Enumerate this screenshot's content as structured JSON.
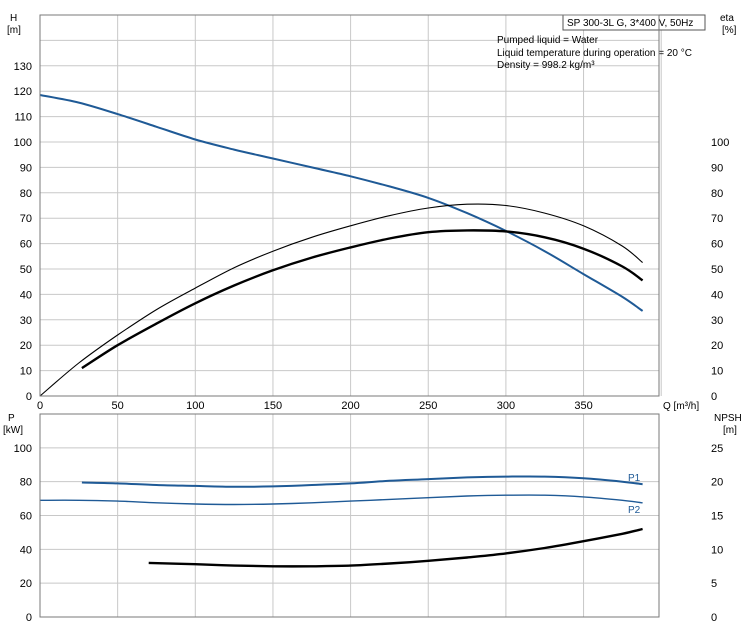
{
  "chart_data": [
    {
      "type": "line",
      "title": "SP 300-3L G, 3*400 V, 50Hz",
      "info_lines": [
        "Pumped liquid = Water",
        "Liquid temperature during operation = 20 °C",
        "Density = 998.2 kg/m³"
      ],
      "xlabel": "Q [m³/h]",
      "ylabel_left": [
        "H",
        "[m]"
      ],
      "ylabel_right": [
        "eta",
        "[%]"
      ],
      "xlim": [
        0,
        400
      ],
      "ylim_left": [
        0,
        150
      ],
      "ylim_right": [
        0,
        150
      ],
      "x_ticks": [
        0,
        50,
        100,
        150,
        200,
        250,
        300,
        350
      ],
      "y_ticks_left": [
        0,
        10,
        20,
        30,
        40,
        50,
        60,
        70,
        80,
        90,
        100,
        110,
        120,
        130
      ],
      "y_ticks_right": [
        0,
        10,
        20,
        30,
        40,
        50,
        60,
        70,
        80,
        90,
        100
      ],
      "grid": true,
      "series": [
        {
          "key": "head",
          "axis": "left",
          "color": "#1f5a96",
          "x": [
            0,
            25,
            50,
            75,
            100,
            125,
            150,
            175,
            200,
            225,
            250,
            275,
            300,
            325,
            350,
            375,
            388
          ],
          "y": [
            118.5,
            115.5,
            111,
            106,
            101,
            97,
            93.5,
            90,
            86.5,
            82.5,
            78,
            72,
            65,
            57,
            48,
            39,
            33.5
          ]
        },
        {
          "key": "eta_thin",
          "axis": "right",
          "color": "#000000",
          "x": [
            0,
            25,
            50,
            75,
            100,
            125,
            150,
            175,
            200,
            225,
            250,
            275,
            300,
            325,
            350,
            375,
            388
          ],
          "y": [
            0,
            13,
            24,
            34,
            42.5,
            50.5,
            57,
            62.5,
            67,
            71,
            74,
            75.5,
            75,
            72,
            67,
            59,
            52.5
          ]
        },
        {
          "key": "eta_thick",
          "axis": "right",
          "color": "#000000",
          "x": [
            27,
            50,
            75,
            100,
            125,
            150,
            175,
            200,
            225,
            250,
            275,
            300,
            325,
            350,
            375,
            388
          ],
          "y": [
            11,
            20,
            28.5,
            36.5,
            43.5,
            49.5,
            54.5,
            58.5,
            62,
            64.5,
            65.2,
            64.8,
            62.5,
            58,
            51,
            45.5
          ]
        }
      ]
    },
    {
      "type": "line",
      "xlim": [
        0,
        400
      ],
      "ylim_left": [
        0,
        120
      ],
      "ylim_right": [
        0,
        30
      ],
      "ylabel_left": [
        "P",
        "[kW]"
      ],
      "ylabel_right": [
        "NPSH",
        "[m]"
      ],
      "y_ticks_left": [
        0,
        20,
        40,
        60,
        80,
        100
      ],
      "y_ticks_right": [
        0,
        5,
        10,
        15,
        20,
        25
      ],
      "grid": true,
      "series": [
        {
          "key": "p1",
          "name": "P1",
          "axis": "left",
          "color": "#1f5a96",
          "x": [
            27,
            50,
            75,
            100,
            125,
            150,
            175,
            200,
            225,
            250,
            275,
            300,
            325,
            350,
            375,
            388
          ],
          "y": [
            79.5,
            79,
            78,
            77.5,
            77,
            77.2,
            78,
            79,
            80.5,
            81.5,
            82.5,
            83,
            83,
            82,
            80,
            78.5
          ]
        },
        {
          "key": "p2",
          "name": "P2",
          "axis": "left",
          "color": "#1f5a96",
          "x": [
            0,
            25,
            50,
            75,
            100,
            125,
            150,
            175,
            200,
            225,
            250,
            275,
            300,
            325,
            350,
            375,
            388
          ],
          "y": [
            69,
            69,
            68.5,
            67.5,
            66.8,
            66.5,
            66.8,
            67.5,
            68.5,
            69.5,
            70.5,
            71.5,
            72,
            72,
            71,
            69,
            67.5
          ]
        },
        {
          "key": "npsh",
          "axis": "right",
          "color": "#000000",
          "x": [
            70,
            100,
            125,
            150,
            175,
            200,
            225,
            250,
            275,
            300,
            325,
            350,
            375,
            388
          ],
          "y": [
            8,
            7.8,
            7.6,
            7.5,
            7.5,
            7.6,
            7.9,
            8.3,
            8.8,
            9.4,
            10.2,
            11.2,
            12.3,
            13
          ]
        }
      ]
    }
  ]
}
